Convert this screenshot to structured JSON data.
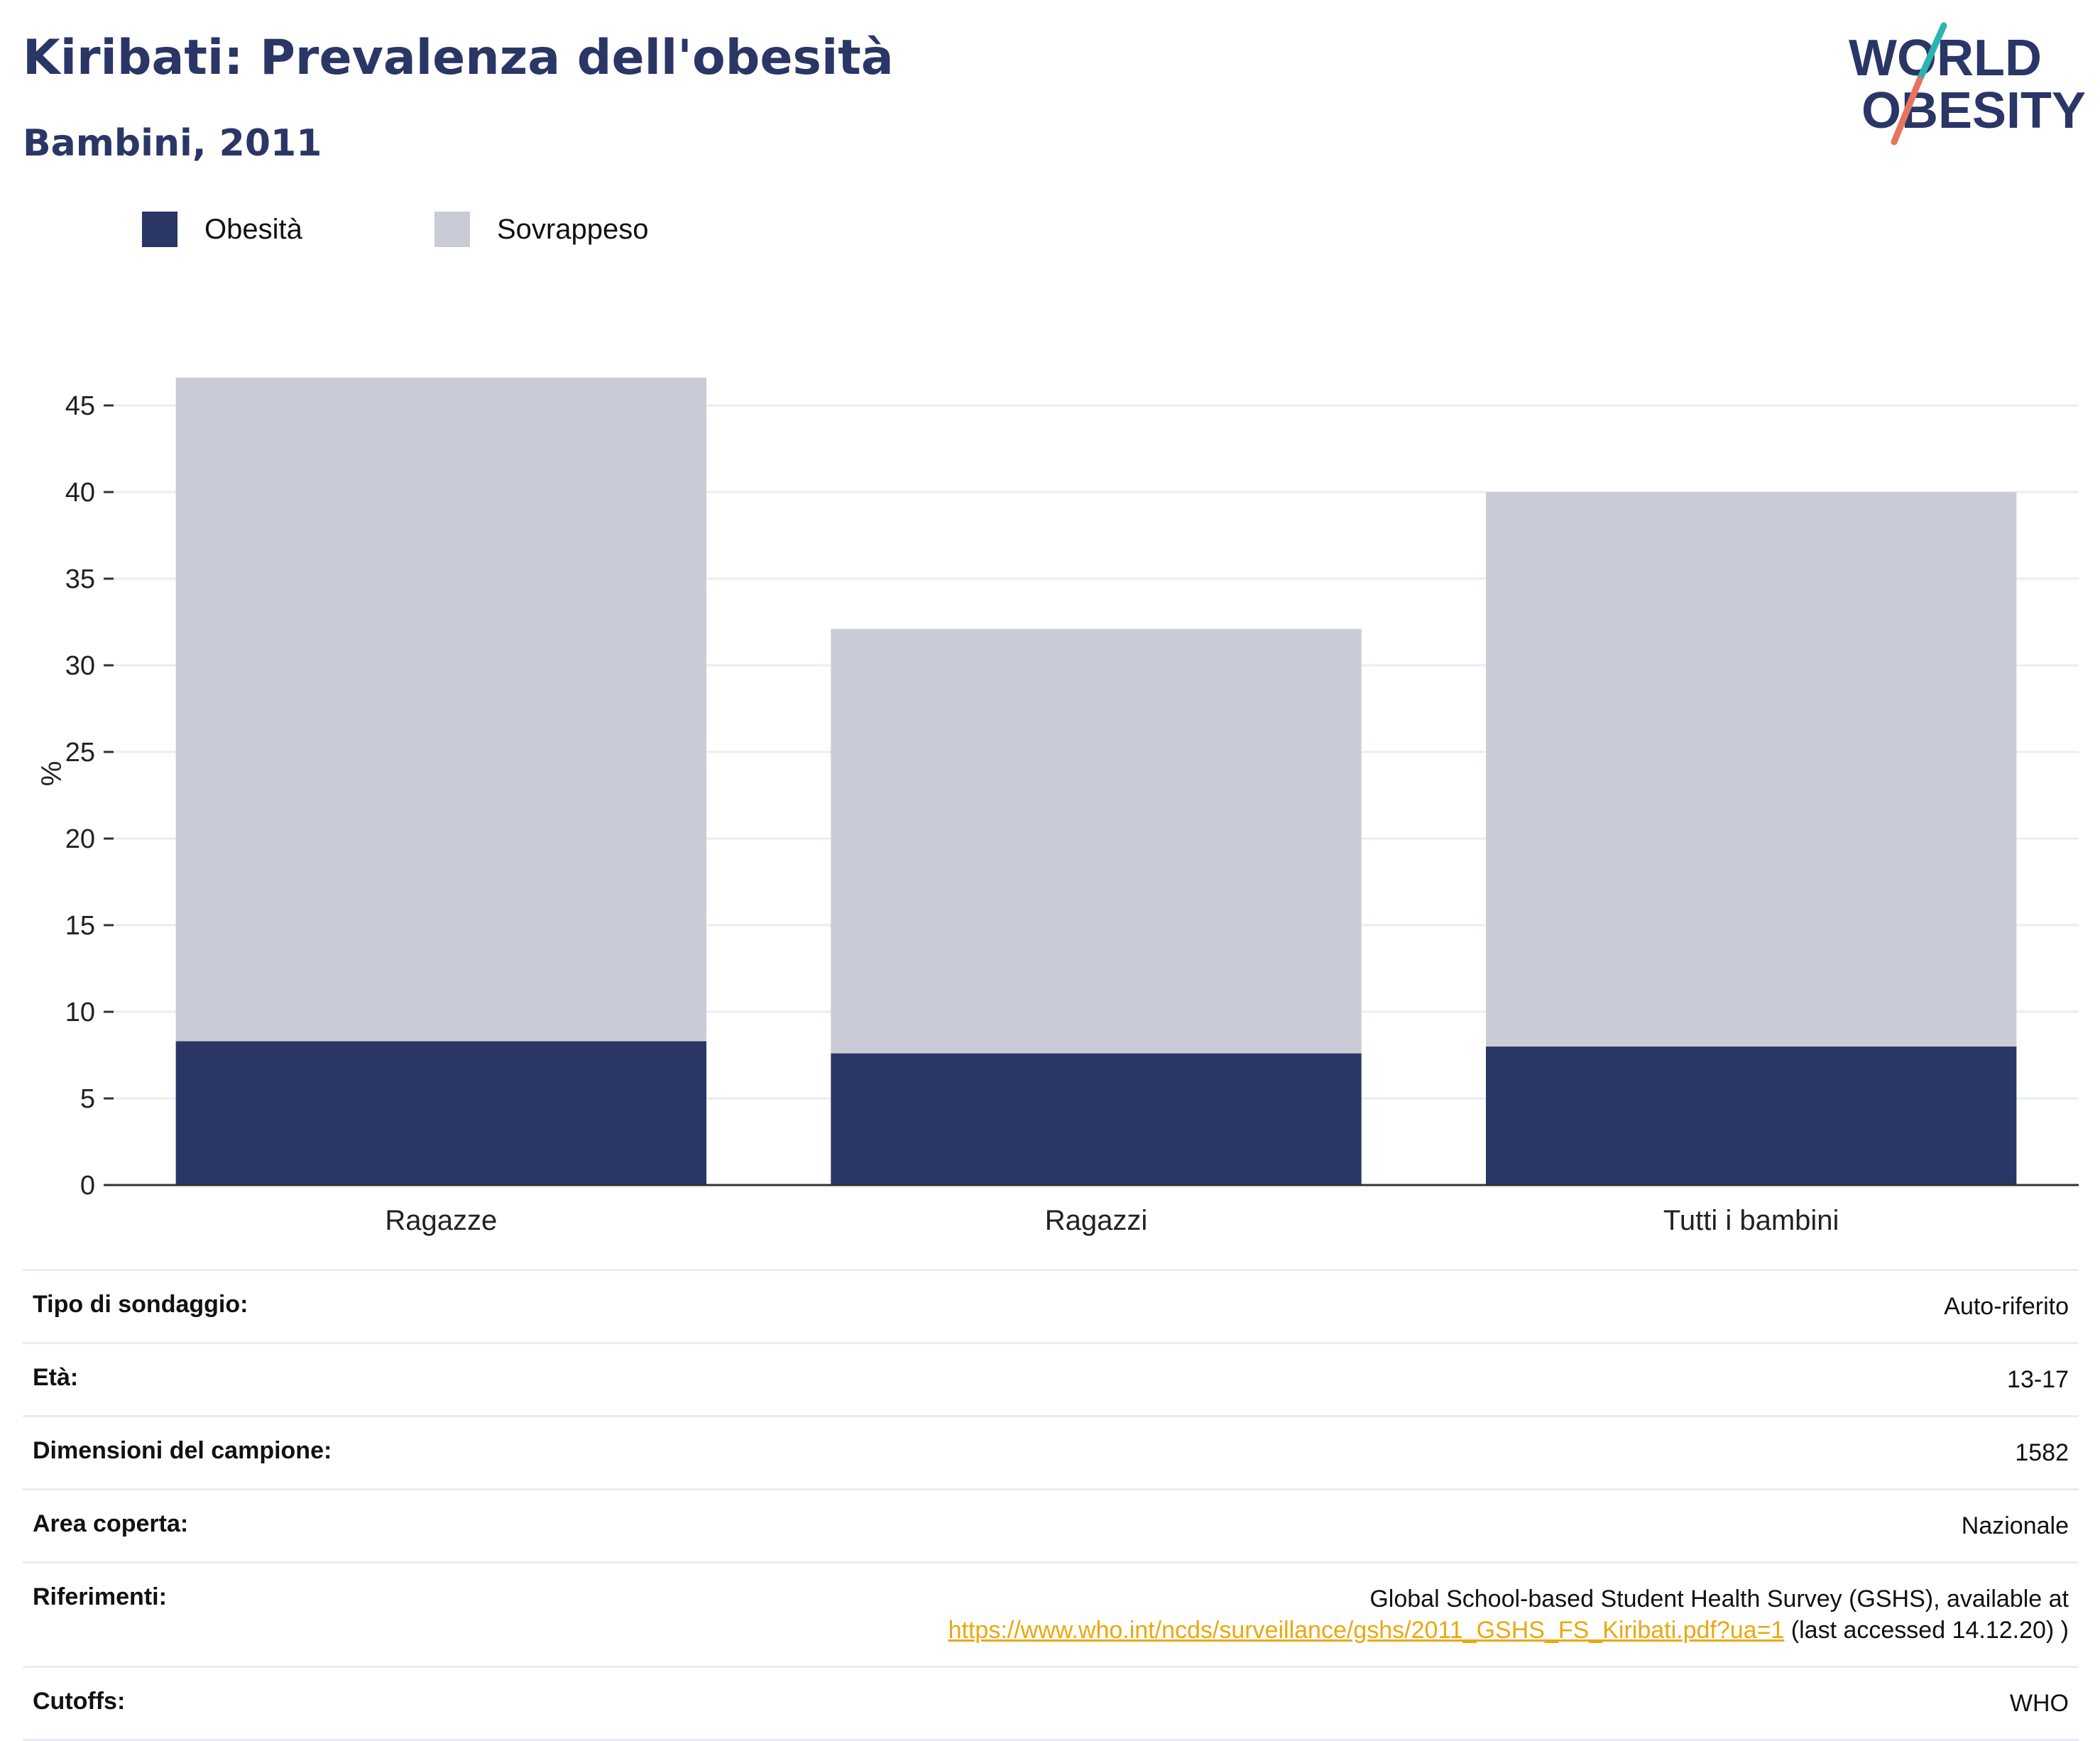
{
  "header": {
    "title": "Kiribati: Prevalenza dell'obesità",
    "subtitle": "Bambini, 2011"
  },
  "logo": {
    "line1": "WORLD",
    "line2": "OBESITY",
    "colors": {
      "text": "#2a3665",
      "slash_top": "#2bb3b1",
      "slash_bottom": "#e8735e"
    }
  },
  "legend": [
    {
      "label": "Obesità",
      "color": "#2a3665"
    },
    {
      "label": "Sovrappeso",
      "color": "#c9ccd7"
    }
  ],
  "chart_data": {
    "type": "bar",
    "stacked": true,
    "categories": [
      "Ragazze",
      "Ragazzi",
      "Tutti i bambini"
    ],
    "series": [
      {
        "name": "Obesità",
        "values": [
          8.3,
          7.6,
          8.0
        ],
        "color": "#2a3665"
      },
      {
        "name": "Sovrappeso",
        "values": [
          38.3,
          24.5,
          32.0
        ],
        "color": "#c9ccd7"
      }
    ],
    "ylabel": "%",
    "xlabel": "",
    "ylim": [
      0,
      47.5
    ],
    "yticks": [
      0,
      5,
      10,
      15,
      20,
      25,
      30,
      35,
      40,
      45
    ],
    "grid": true,
    "legend_position": "top-left"
  },
  "info": {
    "rows": [
      {
        "key": "Tipo di sondaggio:",
        "value": "Auto-riferito"
      },
      {
        "key": "Età:",
        "value": "13-17"
      },
      {
        "key": "Dimensioni del campione:",
        "value": "1582"
      },
      {
        "key": "Area coperta:",
        "value": "Nazionale"
      }
    ],
    "references": {
      "key": "Riferimenti:",
      "line1": "Global School-based Student Health Survey (GSHS), available at",
      "link": "https://www.who.int/ncds/surveillance/gshs/2011_GSHS_FS_Kiribati.pdf?ua=1",
      "suffix": " (last accessed 14.12.20) )"
    },
    "cutoffs": {
      "key": "Cutoffs:",
      "value": "WHO"
    }
  }
}
